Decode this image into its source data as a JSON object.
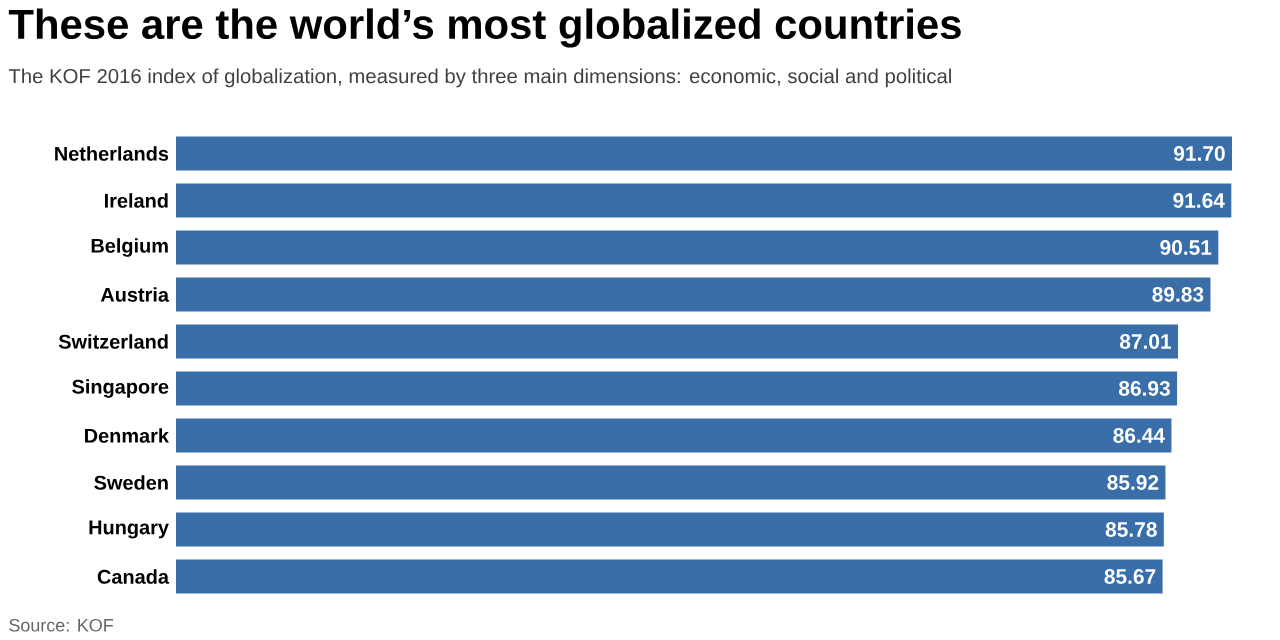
{
  "chart_data": {
    "type": "bar",
    "orientation": "horizontal",
    "relative": false,
    "title": "These are the world’s most globalized countries",
    "subtitle": "The KOF 2016 index of globalization, measured by three main dimensions: economic, social and political",
    "categories": [
      "Netherlands",
      "Ireland",
      "Belgium",
      "Austria",
      "Switzerland",
      "Singapore",
      "Denmark",
      "Sweden",
      "Hungary",
      "Canada"
    ],
    "values": [
      91.7,
      91.64,
      90.51,
      89.83,
      87.01,
      86.93,
      86.44,
      85.92,
      85.78,
      85.67
    ],
    "value_labels": [
      "91.70",
      "91.64",
      "90.51",
      "89.83",
      "87.01",
      "86.93",
      "86.44",
      "85.92",
      "85.78",
      "85.67"
    ],
    "color": "#3a6ea8",
    "annotations": [
      "Source: KOF"
    ]
  }
}
